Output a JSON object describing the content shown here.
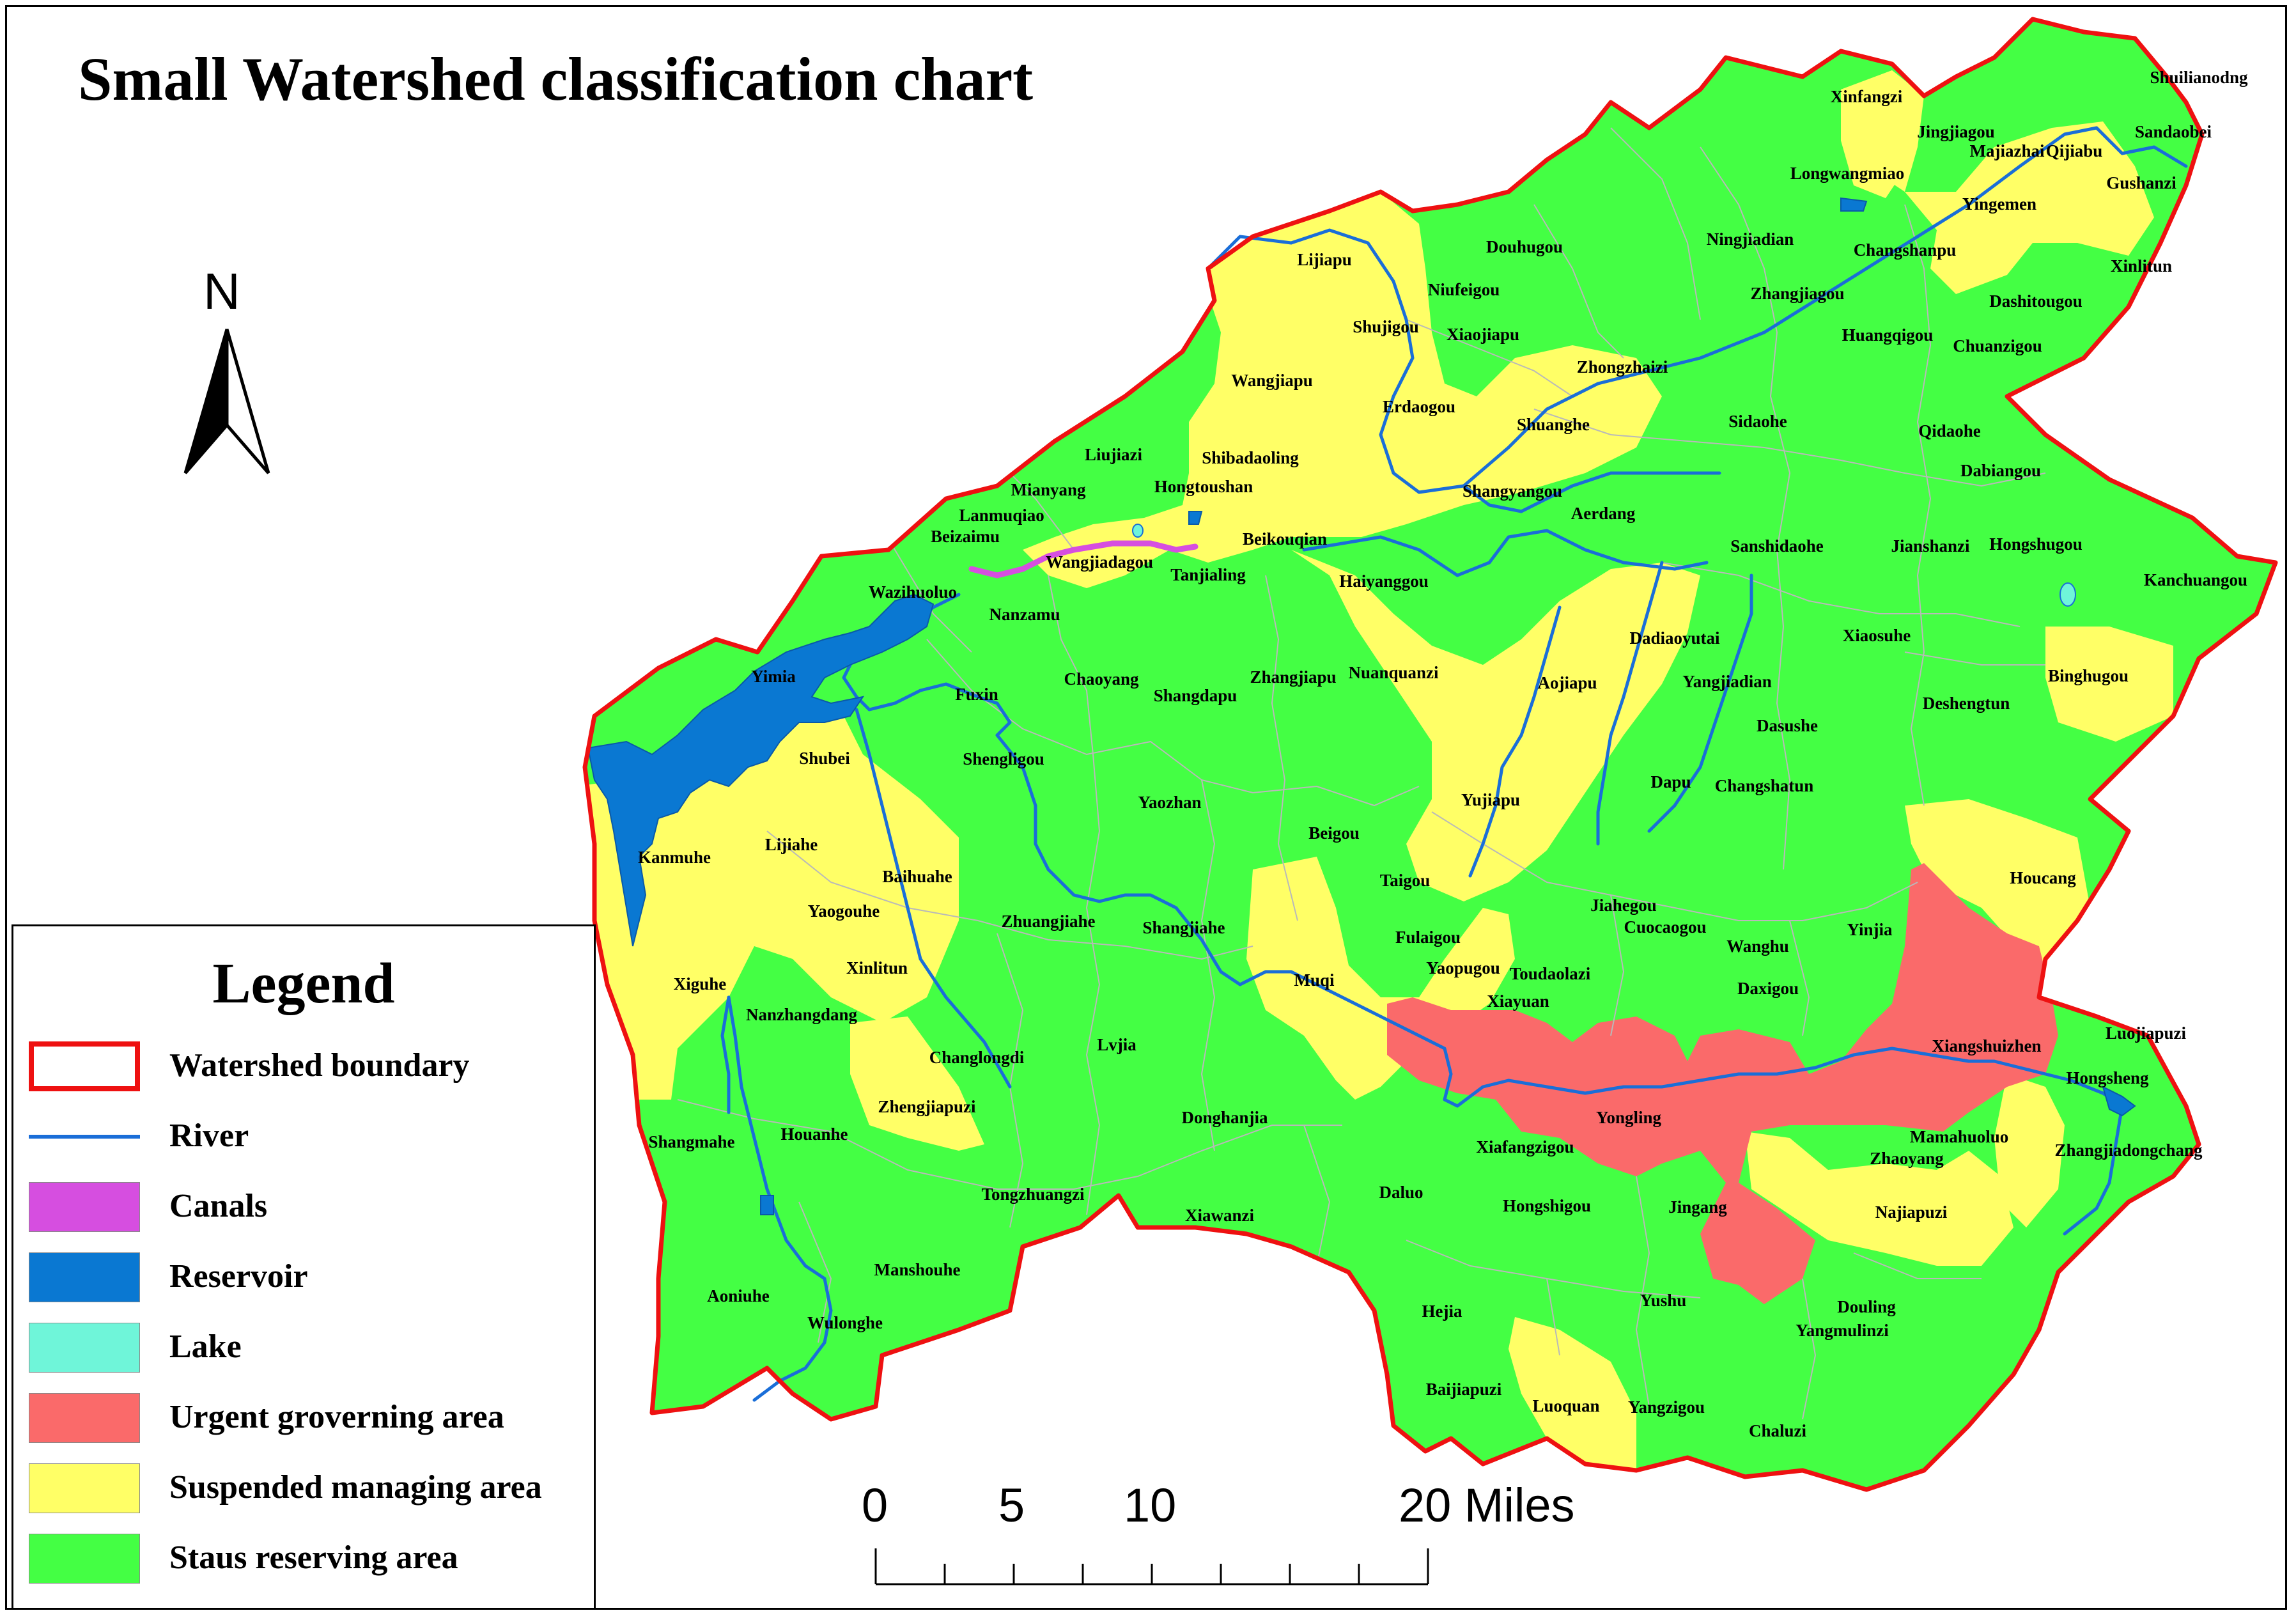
{
  "title": "Small Watershed classification chart",
  "north": {
    "letter": "N"
  },
  "colors": {
    "boundary": "#ee1111",
    "river": "#1a6ed8",
    "canals": "#d64ee0",
    "reservoir": "#0a78d2",
    "lake": "#6ff5d9",
    "urgent": "#fa6a6a",
    "suspended": "#ffff66",
    "status": "#44ff44"
  },
  "legend": {
    "title": "Legend",
    "items": [
      {
        "key": "boundary",
        "label": "Watershed boundary"
      },
      {
        "key": "river",
        "label": "River"
      },
      {
        "key": "canals",
        "label": "Canals"
      },
      {
        "key": "reservoir",
        "label": "Reservoir"
      },
      {
        "key": "lake",
        "label": "Lake"
      },
      {
        "key": "urgent",
        "label": "Urgent groverning area"
      },
      {
        "key": "suspended",
        "label": "Suspended  managing area"
      },
      {
        "key": "status",
        "label": "Staus reserving area"
      }
    ]
  },
  "scale_bar": {
    "labels": [
      "0",
      "5",
      "10",
      "20 Miles"
    ]
  },
  "places": [
    "Xinfangzi",
    "Jingjiagou",
    "Majiazhai",
    "Qijiabu",
    "Shuilianodng",
    "Sandaobei",
    "Gushanzi",
    "Longwangmiao",
    "Yingemen",
    "Changshanpu",
    "Ningjiadian",
    "Douhugou",
    "Xinlitun",
    "Lijiapu",
    "Niufeigou",
    "Zhangjiagou",
    "Dashitougou",
    "Shujigou",
    "Xiaojiapu",
    "Huangqigou",
    "Chuanzigou",
    "Zhongzhaizi",
    "Wangjiapu",
    "Erdaogou",
    "Shuanghe",
    "Sidaohe",
    "Qidaohe",
    "Liujiazi",
    "Shibadaoling",
    "Hongtoushan",
    "Mianyang",
    "Shangyangou",
    "Dabiangou",
    "Lanmuqiao",
    "Aerdang",
    "Beizaimu",
    "Beikouqian",
    "Sanshidaohe",
    "Jianshanzi",
    "Hongshugou",
    "Wangjiadagou",
    "Tanjialing",
    "Haiyanggou",
    "Kanchuangou",
    "Wazihuoluo",
    "Nanzamu",
    "Dadiaoyutai",
    "Xiaosuhe",
    "Chaoyang",
    "Nuanquanzi",
    "Yimia",
    "Zhangjiapu",
    "Shangdapu",
    "Aojiapu",
    "Yangjiadian",
    "Binghugou",
    "Fuxin",
    "Deshengtun",
    "Dasushe",
    "Shubei",
    "Shengligou",
    "Dapu",
    "Changshatun",
    "Yaozhan",
    "Yujiapu",
    "Beigou",
    "Lijiahe",
    "Kanmuhe",
    "Houcang",
    "Baihuahe",
    "Taigou",
    "Jiahegou",
    "Yaogouhe",
    "Zhuangjiahe",
    "Shangjiahe",
    "Cuocaogou",
    "Yinjia",
    "Wanghu",
    "Fulaigou",
    "Xinlitun",
    "Muqi",
    "Yaopugou",
    "Toudaolazi",
    "Daxigou",
    "Xiguhe",
    "Nanzhangdang",
    "Xiayuan",
    "Luojiapuzi",
    "Changlongdi",
    "Lvjia",
    "Xiangshuizhen",
    "Hongsheng",
    "Zhengjiapuzi",
    "Yongling",
    "Donghanjia",
    "Houanhe",
    "Mamahuoluo",
    "Shangmahe",
    "Xiafangzigou",
    "Zhaoyang",
    "Zhangjiadongchang",
    "Tongzhuangzi",
    "Hongshigou",
    "Jingang",
    "Najiapuzi",
    "Daluo",
    "Xiawanzi",
    "Manshouhe",
    "Yushu",
    "Douling",
    "Aoniuhe",
    "Wulonghe",
    "Hejia",
    "Yangmulinzi",
    "Baijiapuzi",
    "Luoquan",
    "Yangzigou",
    "Chaluzi"
  ]
}
